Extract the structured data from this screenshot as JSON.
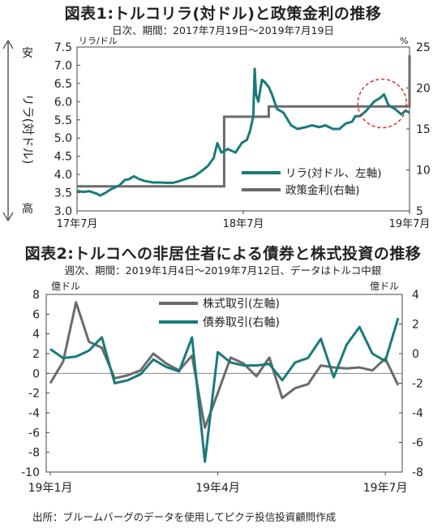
{
  "chart_data": [
    {
      "type": "line",
      "title": "図表1:トルコリラ(対ドル)と政策金利の推移",
      "subtitle": "日次、期間：2017年7月19日～2019年7月19日",
      "left_unit": "リラ/ドル",
      "right_unit": "%",
      "left_axis_note": [
        "安",
        "リラ(対ドル)",
        "高"
      ],
      "ylim_left": [
        3.0,
        7.5
      ],
      "ylim_right": [
        5,
        25
      ],
      "left_ticks": [
        "3.0",
        "3.5",
        "4.0",
        "4.5",
        "5.0",
        "5.5",
        "6.0",
        "6.5",
        "7.0",
        "7.5"
      ],
      "right_ticks": [
        "5",
        "10",
        "15",
        "20",
        "25"
      ],
      "x_ticks": [
        "17年7月",
        "18年7月",
        "19年7月"
      ],
      "legend": [
        "リラ(対ドル、左軸)",
        "政策金利(右軸)"
      ],
      "colors": {
        "lira": "#1a7a7a",
        "rate": "#6b6b6b",
        "circle": "#d0312d"
      },
      "series": [
        {
          "name": "リラ(対ドル、左軸)",
          "axis": "left",
          "x": [
            "2017-07-19",
            "2017-08-01",
            "2017-08-15",
            "2017-09-01",
            "2017-09-08",
            "2017-09-20",
            "2017-10-02",
            "2017-10-20",
            "2017-11-01",
            "2017-11-10",
            "2017-11-21",
            "2017-12-01",
            "2017-12-15",
            "2018-01-02",
            "2018-01-15",
            "2018-02-01",
            "2018-02-15",
            "2018-03-01",
            "2018-03-15",
            "2018-04-02",
            "2018-04-16",
            "2018-05-02",
            "2018-05-15",
            "2018-05-23",
            "2018-06-01",
            "2018-06-15",
            "2018-07-02",
            "2018-07-16",
            "2018-07-27",
            "2018-08-03",
            "2018-08-10",
            "2018-08-13",
            "2018-08-16",
            "2018-08-21",
            "2018-08-29",
            "2018-09-03",
            "2018-09-13",
            "2018-09-20",
            "2018-10-01",
            "2018-10-15",
            "2018-11-01",
            "2018-11-15",
            "2018-12-03",
            "2018-12-17",
            "2019-01-02",
            "2019-01-15",
            "2019-02-01",
            "2019-02-15",
            "2019-03-01",
            "2019-03-15",
            "2019-03-22",
            "2019-04-01",
            "2019-04-15",
            "2019-05-02",
            "2019-05-15",
            "2019-05-24",
            "2019-06-03",
            "2019-06-17",
            "2019-07-01",
            "2019-07-10",
            "2019-07-19"
          ],
          "y": [
            3.55,
            3.52,
            3.54,
            3.47,
            3.42,
            3.5,
            3.6,
            3.7,
            3.85,
            3.87,
            3.95,
            3.88,
            3.82,
            3.78,
            3.78,
            3.77,
            3.77,
            3.82,
            3.88,
            3.95,
            4.07,
            4.23,
            4.45,
            4.86,
            4.6,
            4.7,
            4.6,
            4.87,
            4.95,
            5.2,
            5.6,
            6.9,
            6.2,
            6.0,
            6.6,
            6.55,
            6.4,
            6.2,
            5.8,
            5.7,
            5.35,
            5.25,
            5.3,
            5.35,
            5.3,
            5.35,
            5.25,
            5.25,
            5.4,
            5.45,
            5.6,
            5.6,
            5.75,
            6.0,
            6.1,
            6.2,
            5.9,
            5.8,
            5.65,
            5.75,
            5.7
          ]
        },
        {
          "name": "政策金利(右軸)",
          "axis": "right",
          "step": true,
          "x": [
            "2017-07-19",
            "2018-04-25",
            "2018-06-07",
            "2018-09-13",
            "2019-07-19"
          ],
          "y": [
            8.0,
            8.0,
            16.5,
            17.75,
            24.0
          ]
        }
      ]
    },
    {
      "type": "line",
      "title": "図表2:トルコへの非居住者による債券と株式投資の推移",
      "subtitle": "週次、期間：2019年1月4日～2019年7月12日、データはトルコ中銀",
      "left_unit": "億ドル",
      "right_unit": "億ドル",
      "ylim_left": [
        -10,
        8
      ],
      "ylim_right": [
        -8,
        4
      ],
      "left_ticks": [
        "8",
        "6",
        "4",
        "2",
        "0",
        "-2",
        "-4",
        "-6",
        "-8",
        "-10"
      ],
      "right_ticks": [
        "4",
        "2",
        "0",
        "-2",
        "-4",
        "-6",
        "-8"
      ],
      "x_ticks": [
        "19年1月",
        "19年4月",
        "19年7月"
      ],
      "legend": [
        "株式取引(左軸)",
        "債券取引(右軸)"
      ],
      "colors": {
        "equity": "#6b6b6b",
        "bond": "#1a7a7a"
      },
      "x": [
        "2019-01-04",
        "2019-01-11",
        "2019-01-18",
        "2019-01-25",
        "2019-02-01",
        "2019-02-08",
        "2019-02-15",
        "2019-02-22",
        "2019-03-01",
        "2019-03-08",
        "2019-03-15",
        "2019-03-22",
        "2019-03-29",
        "2019-04-05",
        "2019-04-12",
        "2019-04-19",
        "2019-04-26",
        "2019-05-03",
        "2019-05-10",
        "2019-05-17",
        "2019-05-24",
        "2019-05-31",
        "2019-06-07",
        "2019-06-14",
        "2019-06-21",
        "2019-06-28",
        "2019-07-05",
        "2019-07-12"
      ],
      "series": [
        {
          "name": "株式取引(左軸)",
          "axis": "left",
          "values": [
            -1.0,
            1.2,
            7.2,
            3.2,
            2.6,
            -0.5,
            -0.2,
            0.3,
            2.0,
            1.0,
            0.3,
            1.8,
            -5.5,
            -2.0,
            1.6,
            1.0,
            -0.3,
            1.6,
            -2.5,
            -1.5,
            -1.1,
            0.8,
            0.6,
            0.5,
            0.6,
            0.3,
            1.5,
            -1.2
          ]
        },
        {
          "name": "債券取引(右軸)",
          "axis": "right",
          "values": [
            0.3,
            -0.3,
            -0.2,
            0.2,
            1.1,
            -2.0,
            -1.8,
            -1.4,
            -0.4,
            -0.9,
            -1.2,
            1.1,
            -7.3,
            0.1,
            -0.6,
            -0.8,
            -0.8,
            -0.7,
            -1.8,
            -0.6,
            -0.3,
            1.0,
            -1.6,
            0.6,
            1.8,
            0.0,
            -0.5,
            2.4
          ]
        }
      ]
    }
  ],
  "source": "出所：ブルームバーグのデータを使用してピクテ投信投資顧問作成"
}
